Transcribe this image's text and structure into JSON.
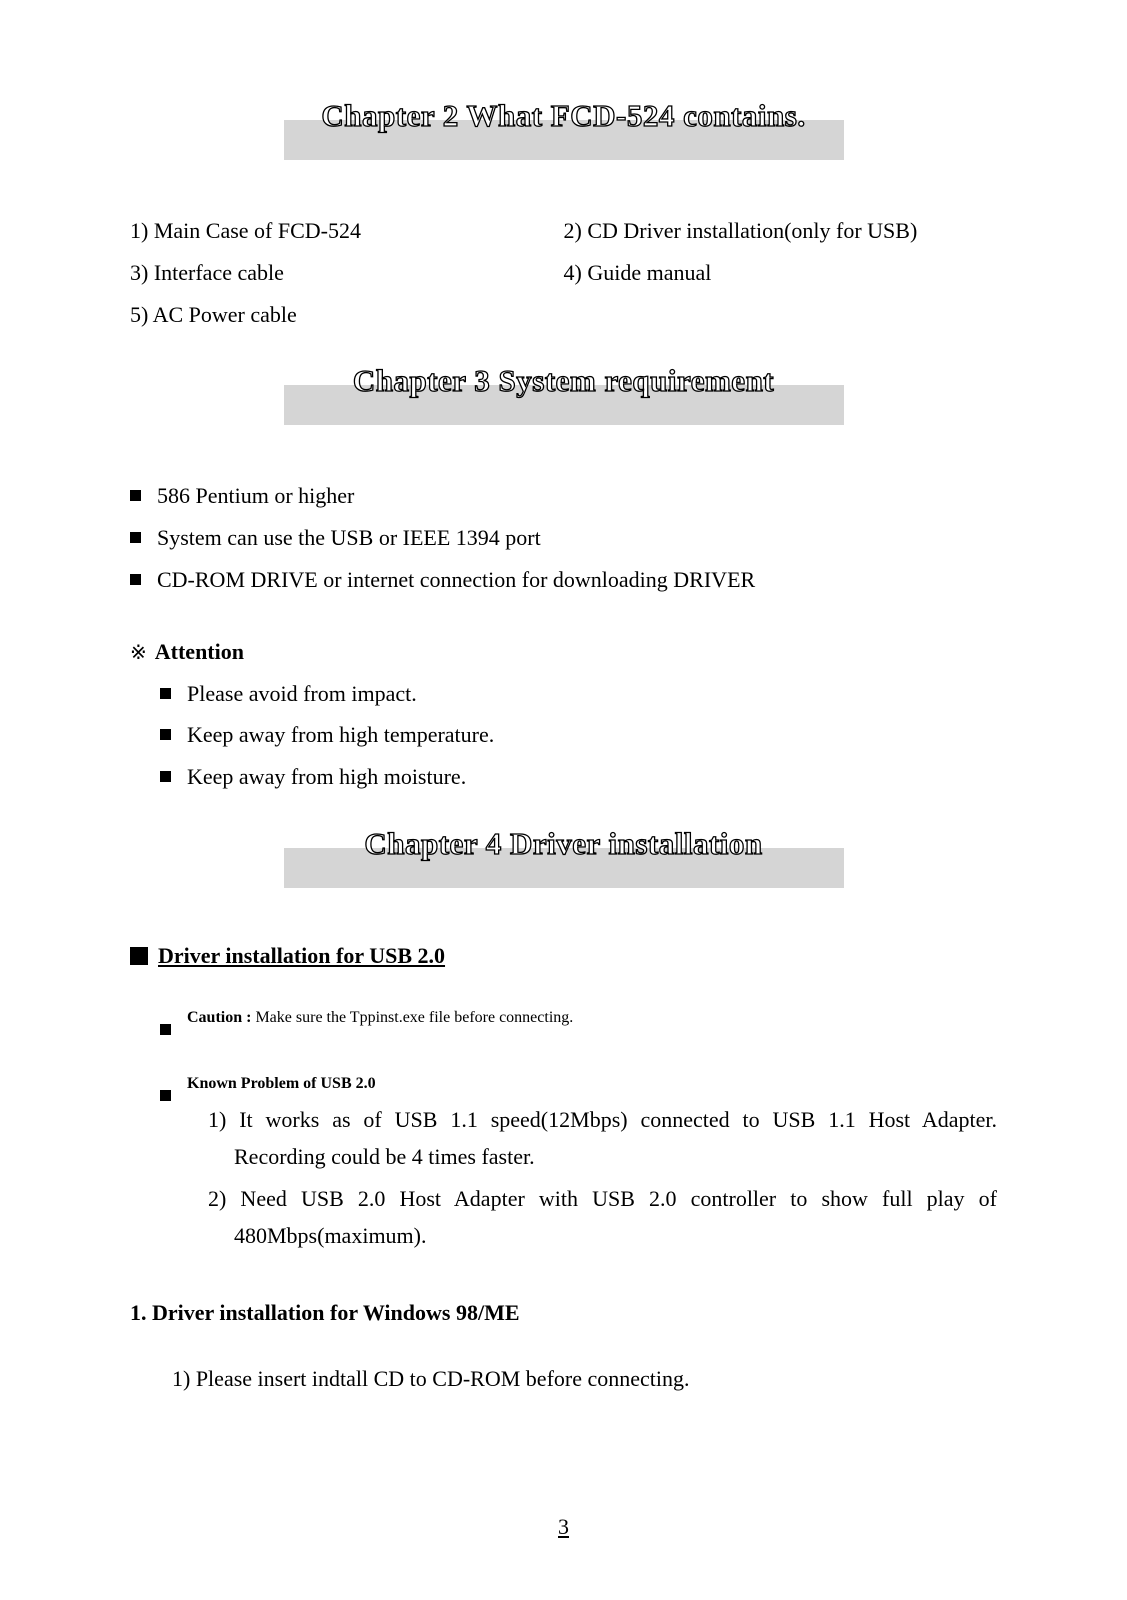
{
  "chapter2": {
    "title": "Chapter 2 What FCD-524 contains.",
    "items": [
      "1) Main Case of FCD-524",
      "2) CD Driver installation(only for USB)",
      "3) Interface cable",
      "4) Guide manual",
      "5) AC Power cable"
    ]
  },
  "chapter3": {
    "title": "Chapter 3 System requirement",
    "bullets": [
      "586 Pentium or higher",
      "System can use the USB or IEEE 1394 port",
      "CD-ROM DRIVE or internet connection for downloading DRIVER"
    ],
    "attention_mark": "※",
    "attention_label": "Attention",
    "attention_items": [
      "Please avoid from impact.",
      "Keep away from high temperature.",
      "Keep away from high moisture."
    ]
  },
  "chapter4": {
    "title": "Chapter 4 Driver installation",
    "section_title": "Driver installation for USB 2.0",
    "caution_label": "Caution :",
    "caution_text": " Make sure the Tppinst.exe file before connecting.",
    "known_label": "Known Problem of USB 2.0",
    "known_items": [
      "1) It works as of USB 1.1 speed(12Mbps) connected to USB 1.1 Host Adapter. Recording could be 4 times faster.",
      "2) Need USB 2.0 Host Adapter with USB 2.0 controller to show full play of 480Mbps(maximum)."
    ],
    "step_heading": "1. Driver installation for Windows 98/ME",
    "step_line": "1) Please insert indtall CD to CD-ROM before connecting."
  },
  "page_number": "3",
  "colors": {
    "heading_bg": "#d5d5d5",
    "heading_fill": "#ffffff",
    "heading_stroke": "#000000",
    "text": "#000000",
    "page_bg": "#ffffff"
  }
}
